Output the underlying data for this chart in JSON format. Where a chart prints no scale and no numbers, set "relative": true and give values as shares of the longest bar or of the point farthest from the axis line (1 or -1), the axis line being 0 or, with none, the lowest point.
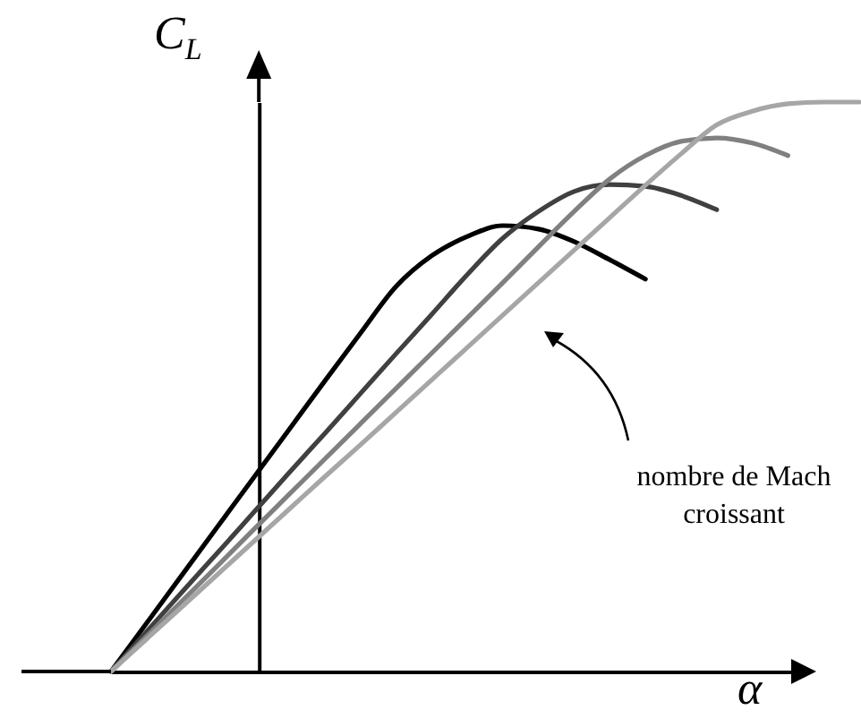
{
  "chart_data": {
    "type": "line",
    "relative": true,
    "xlabel": "α",
    "ylabel": "C$_{L}$",
    "categories": [
      null,
      null,
      null,
      null,
      null,
      null,
      null,
      null,
      null,
      null,
      null,
      null,
      null,
      null,
      null,
      null,
      null,
      null,
      null,
      null,
      null,
      null
    ],
    "series": [
      {
        "color": "#000000",
        "values": [
          0,
          0.085,
          0.17,
          0.255,
          0.34,
          0.425,
          0.51,
          0.594,
          0.676,
          0.73,
          0.764,
          0.783,
          0.777,
          0.755,
          0.723,
          0.689,
          null,
          null,
          null,
          null,
          null,
          null
        ]
      },
      {
        "color": "#404040",
        "values": [
          0,
          0.07,
          0.14,
          0.209,
          0.279,
          0.349,
          0.418,
          0.488,
          0.558,
          0.627,
          0.697,
          0.761,
          0.808,
          0.843,
          0.855,
          0.852,
          0.836,
          0.811,
          null,
          null,
          null,
          null
        ]
      },
      {
        "color": "#808080",
        "values": [
          0,
          0.062,
          0.124,
          0.186,
          0.249,
          0.311,
          0.373,
          0.435,
          0.497,
          0.559,
          0.621,
          0.683,
          0.746,
          0.808,
          0.865,
          0.906,
          0.931,
          0.937,
          0.928,
          0.906,
          null,
          null
        ]
      },
      {
        "color": "#a6a6a6",
        "values": [
          0,
          0.057,
          0.114,
          0.171,
          0.228,
          0.285,
          0.342,
          0.398,
          0.455,
          0.512,
          0.569,
          0.626,
          0.683,
          0.74,
          0.797,
          0.854,
          0.909,
          0.96,
          0.984,
          0.997,
          1,
          1
        ]
      }
    ],
    "annotations": [
      {
        "text": "nombre de Mach croissant"
      }
    ],
    "line_style": "solid",
    "legend": false,
    "grid": false
  }
}
